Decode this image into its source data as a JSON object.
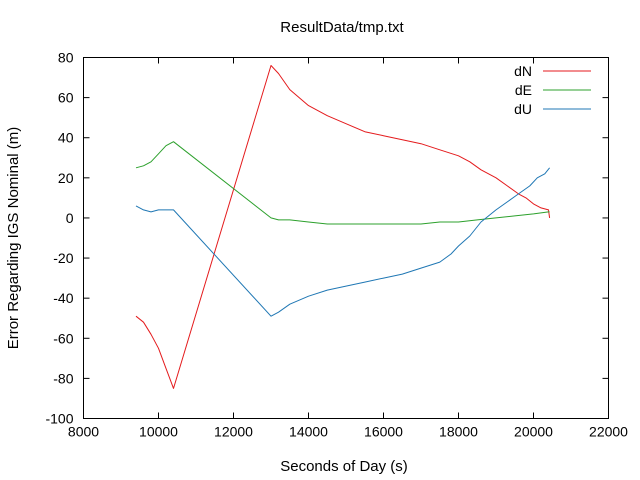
{
  "chart_data": {
    "type": "line",
    "title": "ResultData/tmp.txt",
    "xlabel": "Seconds of Day (s)",
    "ylabel": "Error Regarding IGS Nominal (m)",
    "xlim": [
      8000,
      22000
    ],
    "ylim": [
      -100,
      80
    ],
    "xticks": [
      "8000",
      "10000",
      "12000",
      "14000",
      "16000",
      "18000",
      "20000",
      "22000"
    ],
    "yticks": [
      "-100",
      "-80",
      "-60",
      "-40",
      "-20",
      "0",
      "20",
      "40",
      "60",
      "80"
    ],
    "grid": false,
    "legend_position": "top-right",
    "series": [
      {
        "name": "dN",
        "color": "#e41a1c",
        "x": [
          9400,
          9600,
          9800,
          10000,
          10200,
          10400,
          13000,
          13200,
          13500,
          14000,
          14500,
          15000,
          15500,
          16000,
          16500,
          17000,
          17500,
          18000,
          18300,
          18600,
          19000,
          19300,
          19600,
          19800,
          20000,
          20200,
          20400,
          20430
        ],
        "y": [
          -49,
          -52,
          -58,
          -65,
          -75,
          -85,
          76,
          72,
          64,
          56,
          51,
          47,
          43,
          41,
          39,
          37,
          34,
          31,
          28,
          24,
          20,
          16,
          12,
          10,
          7,
          5,
          4,
          0
        ]
      },
      {
        "name": "dE",
        "color": "#2ca02c",
        "x": [
          9400,
          9600,
          9800,
          10000,
          10200,
          10400,
          13000,
          13200,
          13500,
          14000,
          14500,
          15000,
          15500,
          16000,
          16500,
          17000,
          17500,
          18000,
          18500,
          19000,
          19500,
          20000,
          20400,
          20430
        ],
        "y": [
          25,
          26,
          28,
          32,
          36,
          38,
          0,
          -1,
          -1,
          -2,
          -3,
          -3,
          -3,
          -3,
          -3,
          -3,
          -2,
          -2,
          -1,
          0,
          1,
          2,
          3,
          3
        ]
      },
      {
        "name": "dU",
        "color": "#1f77b4",
        "x": [
          9400,
          9600,
          9800,
          10000,
          10200,
          10400,
          13000,
          13200,
          13500,
          14000,
          14500,
          15000,
          15500,
          16000,
          16500,
          17000,
          17500,
          17800,
          18000,
          18300,
          18600,
          19000,
          19300,
          19600,
          19900,
          20100,
          20300,
          20430
        ],
        "y": [
          6,
          4,
          3,
          4,
          4,
          4,
          -49,
          -47,
          -43,
          -39,
          -36,
          -34,
          -32,
          -30,
          -28,
          -25,
          -22,
          -18,
          -14,
          -9,
          -2,
          4,
          8,
          12,
          16,
          20,
          22,
          25
        ]
      }
    ]
  }
}
